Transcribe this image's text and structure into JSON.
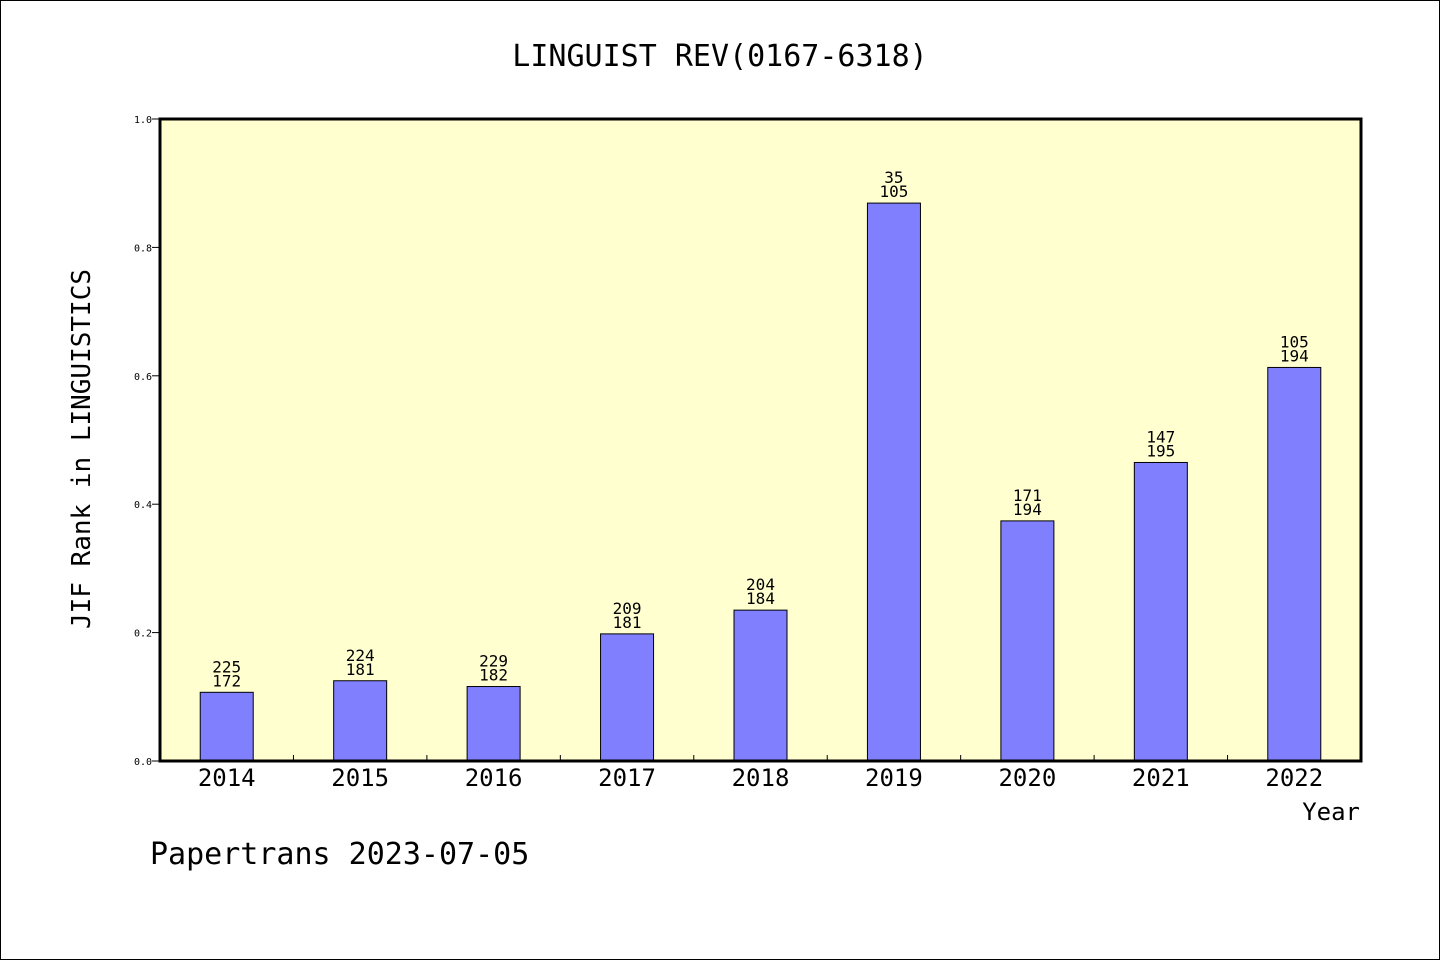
{
  "chart_data": {
    "type": "bar",
    "title": "LINGUIST REV(0167-6318)",
    "xlabel": "Year",
    "ylabel": "JIF Rank in LINGUISTICS",
    "categories": [
      "2014",
      "2015",
      "2016",
      "2017",
      "2018",
      "2019",
      "2020",
      "2021",
      "2022"
    ],
    "values": [
      0.107,
      0.125,
      0.116,
      0.198,
      0.235,
      0.869,
      0.374,
      0.465,
      0.613
    ],
    "labels_top": [
      "225",
      "224",
      "229",
      "209",
      "204",
      "35",
      "171",
      "147",
      "105"
    ],
    "labels_bottom": [
      "172",
      "181",
      "182",
      "181",
      "184",
      "105",
      "194",
      "195",
      "194"
    ],
    "ylim": [
      0,
      1.0
    ],
    "yticks": [
      "0.0",
      "0.2",
      "0.4",
      "0.6",
      "0.8",
      "1.0"
    ],
    "grid": false,
    "legend": "none",
    "bar_color": "#8080ff",
    "plot_background": "#ffffd0"
  },
  "footer": "Papertrans 2023-07-05"
}
